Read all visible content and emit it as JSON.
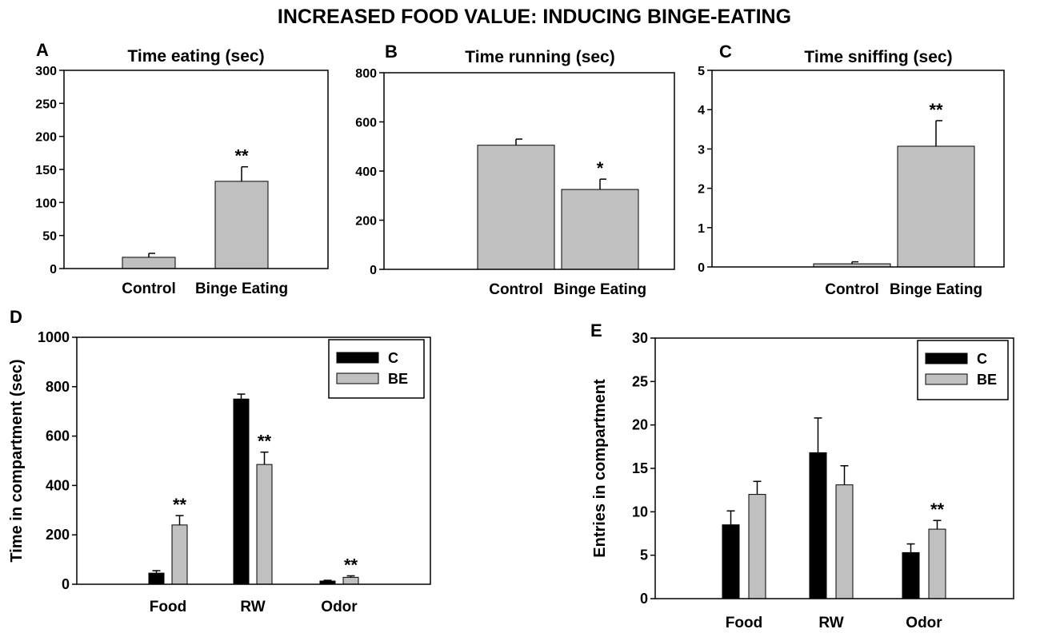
{
  "figure_title": "INCREASED FOOD VALUE: INDUCING BINGE-EATING",
  "colors": {
    "control": "#000000",
    "binge": "#c0c0c0",
    "axis": "#000000",
    "background": "#ffffff"
  },
  "chart_data": [
    {
      "id": "A",
      "letter": "A",
      "type": "bar",
      "title": "Time  eating (sec)",
      "xlabel": "",
      "ylabel": "",
      "ylim": [
        0,
        300
      ],
      "yticks": [
        "0",
        "50",
        "100",
        "150",
        "200",
        "250",
        "300"
      ],
      "categories": [
        "Control",
        "Binge Eating"
      ],
      "values": [
        17,
        132
      ],
      "errors": [
        6,
        22
      ],
      "significance": [
        "",
        "**"
      ]
    },
    {
      "id": "B",
      "letter": "B",
      "type": "bar",
      "title": "Time running (sec)",
      "xlabel": "",
      "ylabel": "",
      "ylim": [
        0,
        800
      ],
      "yticks": [
        "0",
        "200",
        "400",
        "600",
        "800"
      ],
      "categories": [
        "Control",
        "Binge Eating"
      ],
      "values": [
        505,
        325
      ],
      "errors": [
        25,
        42
      ],
      "significance": [
        "",
        "*"
      ]
    },
    {
      "id": "C",
      "letter": "C",
      "type": "bar",
      "title": "Time sniffing (sec)",
      "xlabel": "",
      "ylabel": "",
      "ylim": [
        0,
        5
      ],
      "yticks": [
        "0",
        "1",
        "2",
        "3",
        "4",
        "5"
      ],
      "categories": [
        "Control",
        "Binge Eating"
      ],
      "values": [
        0.08,
        3.07
      ],
      "errors": [
        0.05,
        0.65
      ],
      "significance": [
        "",
        "**"
      ]
    },
    {
      "id": "D",
      "letter": "D",
      "type": "bar",
      "title": "",
      "xlabel": "",
      "ylabel": "Time in compartment (sec)",
      "ylim": [
        0,
        1000
      ],
      "yticks": [
        "0",
        "200",
        "400",
        "600",
        "800",
        "1000"
      ],
      "categories": [
        "Food",
        "RW",
        "Odor"
      ],
      "legend": {
        "position": "top-right",
        "entries": [
          "C",
          "BE"
        ]
      },
      "series": [
        {
          "name": "C",
          "values": [
            45,
            750,
            13
          ],
          "errors": [
            10,
            20,
            3
          ],
          "significance": [
            "",
            "",
            ""
          ]
        },
        {
          "name": "BE",
          "values": [
            240,
            485,
            28
          ],
          "errors": [
            38,
            50,
            6
          ],
          "significance": [
            "**",
            "**",
            "**"
          ]
        }
      ]
    },
    {
      "id": "E",
      "letter": "E",
      "type": "bar",
      "title": "",
      "xlabel": "",
      "ylabel": "Entries in compartment",
      "ylim": [
        0,
        30
      ],
      "yticks": [
        "0",
        "5",
        "10",
        "15",
        "20",
        "25",
        "30"
      ],
      "categories": [
        "Food",
        "RW",
        "Odor"
      ],
      "legend": {
        "position": "top-right",
        "entries": [
          "C",
          "BE"
        ]
      },
      "series": [
        {
          "name": "C",
          "values": [
            8.5,
            16.8,
            5.3
          ],
          "errors": [
            1.6,
            4.0,
            1.0
          ],
          "significance": [
            "",
            "",
            ""
          ]
        },
        {
          "name": "BE",
          "values": [
            12.0,
            13.1,
            8.0
          ],
          "errors": [
            1.5,
            2.2,
            1.0
          ],
          "significance": [
            "",
            "",
            "**"
          ]
        }
      ]
    }
  ]
}
